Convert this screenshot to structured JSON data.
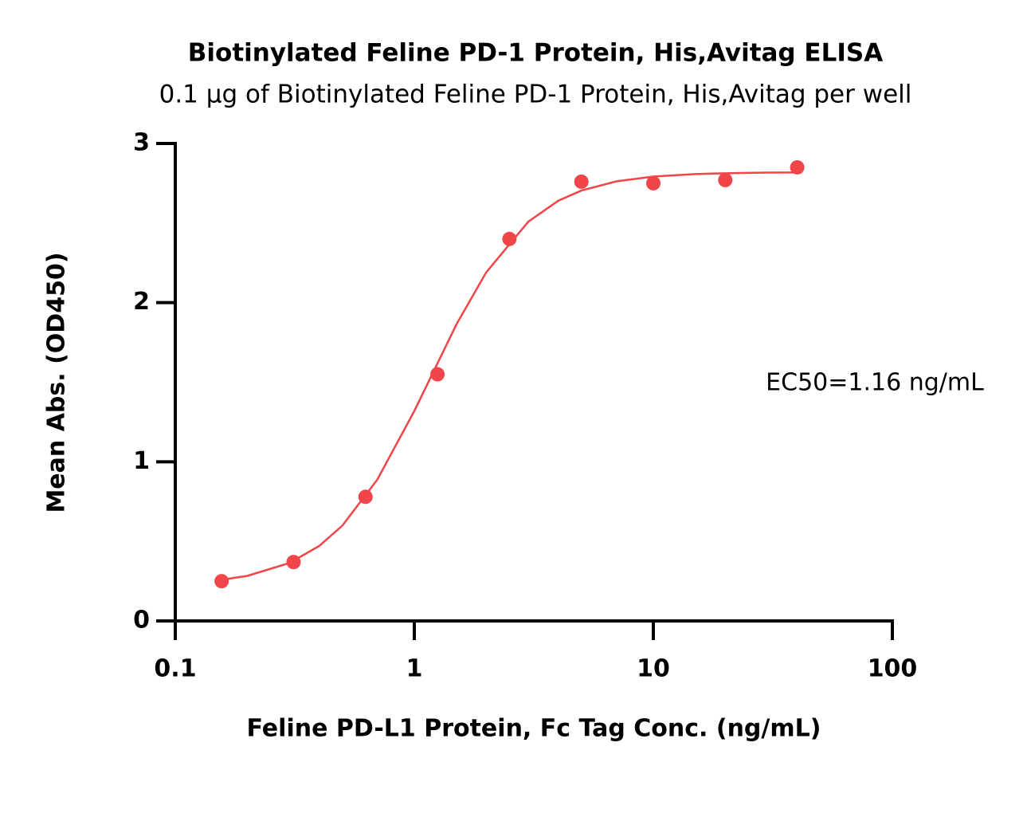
{
  "chart_data": {
    "type": "scatter",
    "title": "Biotinylated Feline PD-1 Protein, His,Avitag ELISA",
    "subtitle": "0.1 μg of Biotinylated Feline PD-1 Protein, His,Avitag per well",
    "x_label": "Feline PD-L1 Protein, Fc Tag Conc. (ng/mL)",
    "y_label": "Mean Abs. (OD450)",
    "annotation": "EC50=1.16 ng/mL",
    "x_log": true,
    "xlim": [
      0.1,
      100
    ],
    "xticks": [
      0.1,
      1,
      10,
      100
    ],
    "ylim": [
      0,
      3
    ],
    "yticks": [
      0,
      1,
      2,
      3
    ],
    "grid": false,
    "series": [
      {
        "mode": "markers",
        "color": "#f2454a",
        "x": [
          0.15625,
          0.3125,
          0.625,
          1.25,
          2.5,
          5,
          10,
          20,
          40
        ],
        "values": [
          0.25,
          0.37,
          0.78,
          1.55,
          2.4,
          2.76,
          2.75,
          2.77,
          2.85
        ]
      },
      {
        "mode": "line",
        "color": "#f2454a",
        "x": [
          0.15,
          0.2,
          0.3,
          0.4,
          0.5,
          0.7,
          1,
          1.5,
          2,
          3,
          4,
          5,
          7,
          10,
          15,
          20,
          30,
          40
        ],
        "values": [
          0.255,
          0.283,
          0.364,
          0.471,
          0.599,
          0.888,
          1.319,
          1.863,
          2.191,
          2.509,
          2.64,
          2.704,
          2.762,
          2.792,
          2.808,
          2.813,
          2.817,
          2.818
        ]
      }
    ]
  }
}
